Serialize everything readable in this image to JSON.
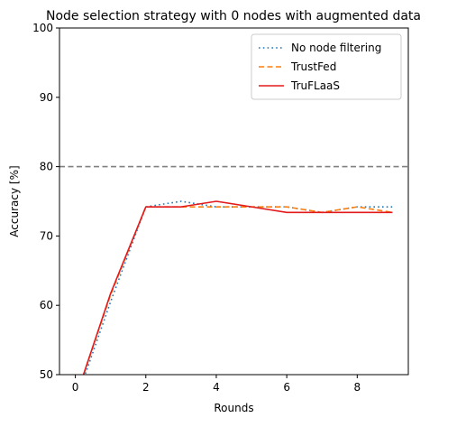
{
  "chart_data": {
    "type": "line",
    "title": "Node selection strategy with 0 nodes with augmented data",
    "xlabel": "Rounds",
    "ylabel": "Accuracy [%]",
    "xlim": [
      -0.45,
      9.45
    ],
    "ylim": [
      50,
      100
    ],
    "xticks": [
      0,
      2,
      4,
      6,
      8
    ],
    "yticks": [
      50,
      60,
      70,
      80,
      90,
      100
    ],
    "grid": false,
    "legend_position": "top-right",
    "reference_line": {
      "y": 80,
      "style": "dashed",
      "color": "#808080"
    },
    "series": [
      {
        "name": "No node filtering",
        "style": "dotted",
        "color": "#1f77b4",
        "x": [
          0,
          1,
          2,
          3,
          4,
          5,
          6,
          7,
          8,
          9
        ],
        "y": [
          46.0,
          60.5,
          74.2,
          75.0,
          74.2,
          74.2,
          74.2,
          73.4,
          74.2,
          74.2
        ]
      },
      {
        "name": "TrustFed",
        "style": "dashed",
        "color": "#ff7f0e",
        "x": [
          0,
          1,
          2,
          3,
          4,
          5,
          6,
          7,
          8,
          9
        ],
        "y": [
          46.5,
          61.5,
          74.2,
          74.2,
          74.2,
          74.2,
          74.2,
          73.4,
          74.2,
          73.4
        ]
      },
      {
        "name": "TruFLaaS",
        "style": "solid",
        "color": "#e31a1c",
        "x": [
          0,
          1,
          2,
          3,
          4,
          5,
          6,
          7,
          8,
          9
        ],
        "y": [
          46.5,
          61.7,
          74.2,
          74.2,
          75.0,
          74.2,
          73.4,
          73.4,
          73.4,
          73.4
        ]
      }
    ]
  }
}
